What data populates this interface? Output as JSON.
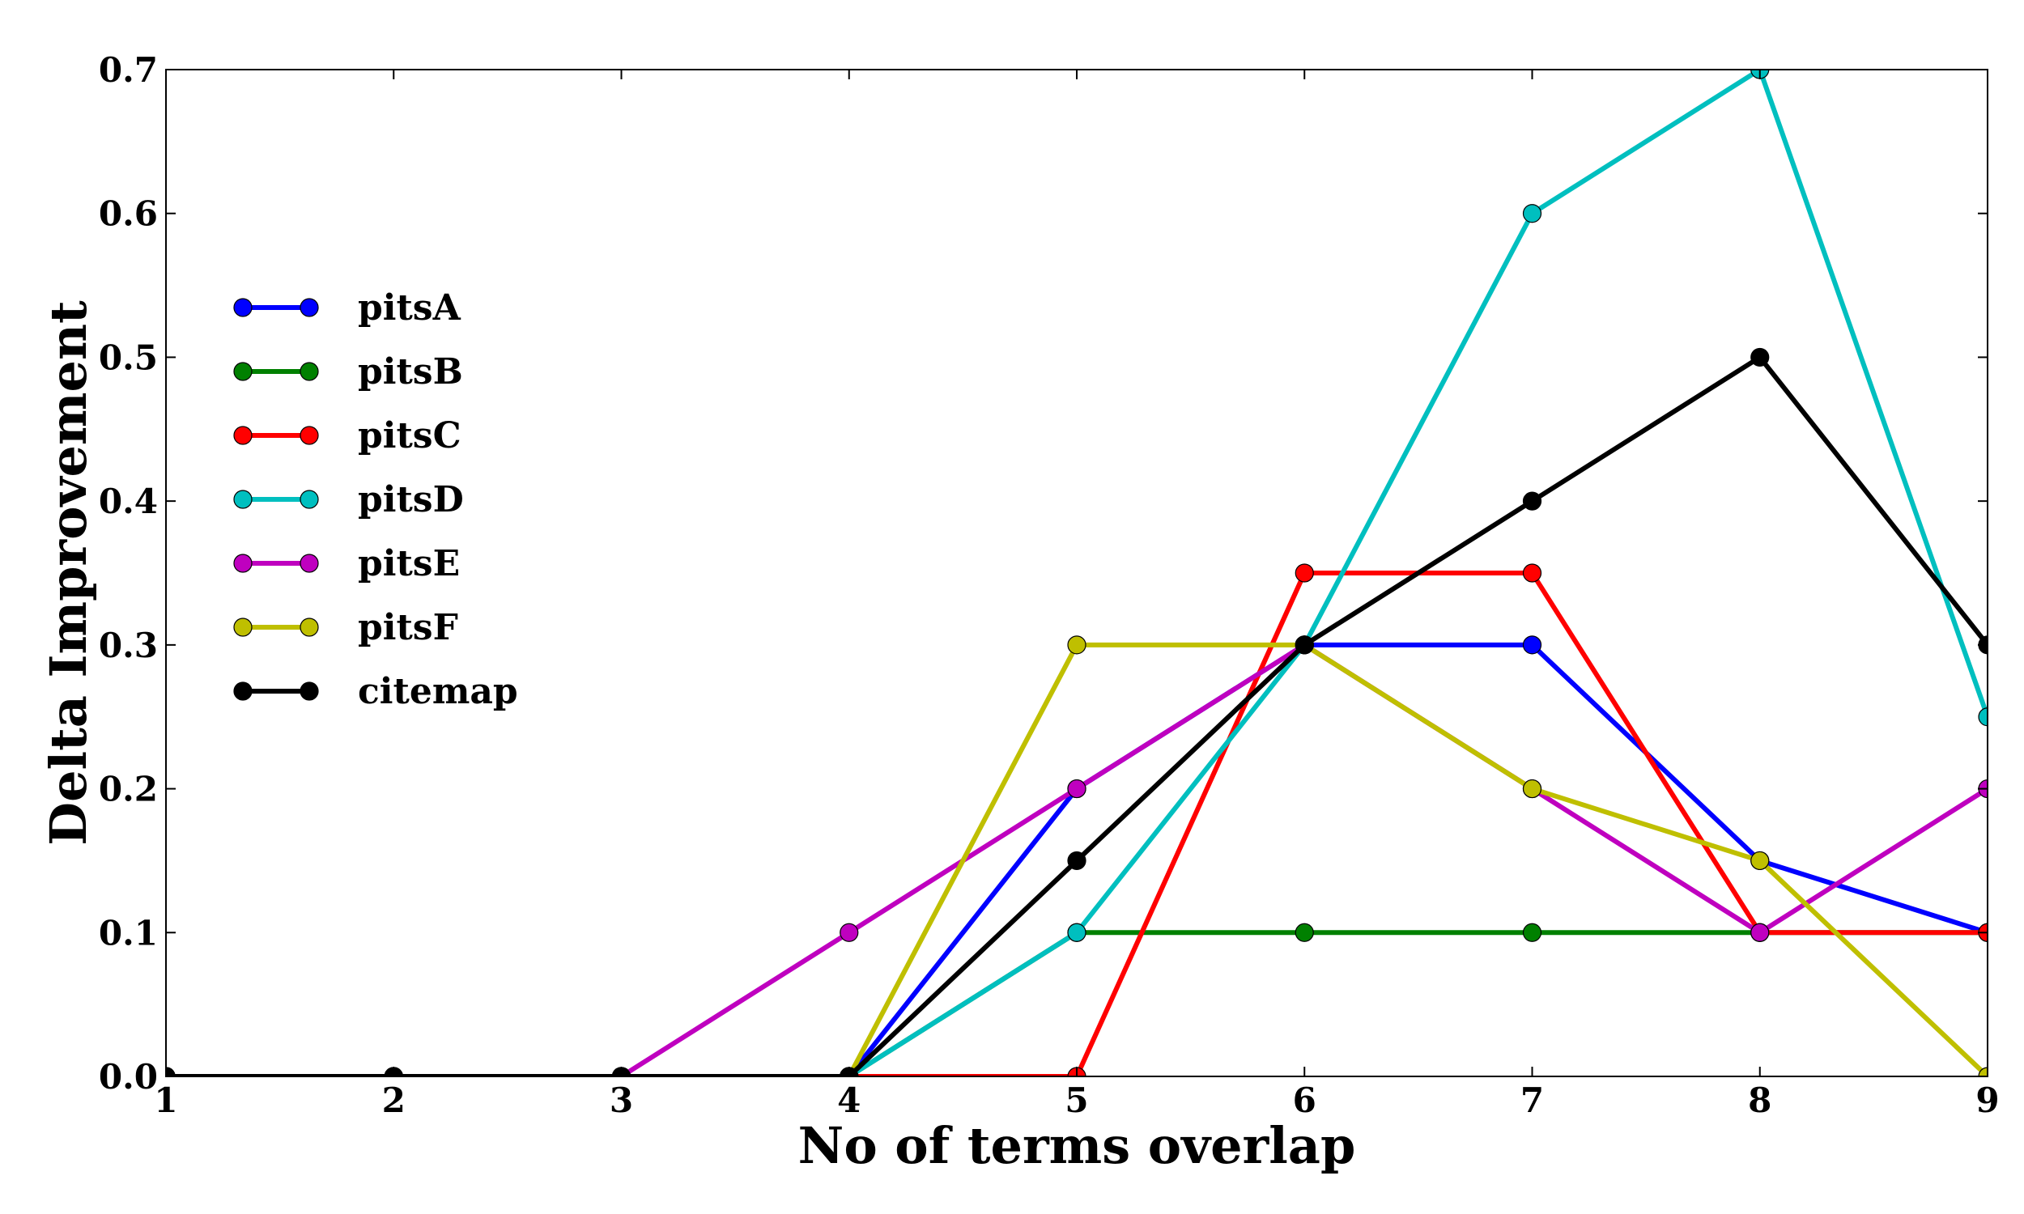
{
  "chart_data": {
    "type": "line",
    "title": "",
    "xlabel": "No of terms overlap",
    "ylabel": "Delta Improvement",
    "x": [
      1,
      2,
      3,
      4,
      5,
      6,
      7,
      8,
      9
    ],
    "xlim": [
      1,
      9
    ],
    "ylim": [
      0,
      0.7
    ],
    "xticks": [
      "1",
      "2",
      "3",
      "4",
      "5",
      "6",
      "7",
      "8",
      "9"
    ],
    "yticks": [
      "0.0",
      "0.1",
      "0.2",
      "0.3",
      "0.4",
      "0.5",
      "0.6",
      "0.7"
    ],
    "grid": false,
    "legend_position": "center-left",
    "series": [
      {
        "name": "pitsA",
        "color": "#0000ff",
        "values": [
          0,
          0,
          0,
          0,
          0.2,
          0.3,
          0.3,
          0.15,
          0.1
        ]
      },
      {
        "name": "pitsB",
        "color": "#008000",
        "values": [
          0,
          0,
          0,
          0,
          0.1,
          0.1,
          0.1,
          0.1,
          0.1
        ]
      },
      {
        "name": "pitsC",
        "color": "#ff0000",
        "values": [
          0,
          0,
          0,
          0,
          0,
          0.35,
          0.35,
          0.1,
          0.1
        ]
      },
      {
        "name": "pitsD",
        "color": "#00bfbf",
        "values": [
          0,
          0,
          0,
          0,
          0.1,
          0.3,
          0.6,
          0.7,
          0.25
        ]
      },
      {
        "name": "pitsE",
        "color": "#bf00bf",
        "values": [
          0,
          0,
          0,
          0.1,
          0.2,
          0.3,
          0.2,
          0.1,
          0.2
        ]
      },
      {
        "name": "pitsF",
        "color": "#bfbf00",
        "values": [
          0,
          0,
          0,
          0,
          0.3,
          0.3,
          0.2,
          0.15,
          0
        ]
      },
      {
        "name": "citemap",
        "color": "#000000",
        "values": [
          0,
          0,
          0,
          0,
          0.15,
          0.3,
          0.4,
          0.5,
          0.3
        ]
      }
    ]
  }
}
